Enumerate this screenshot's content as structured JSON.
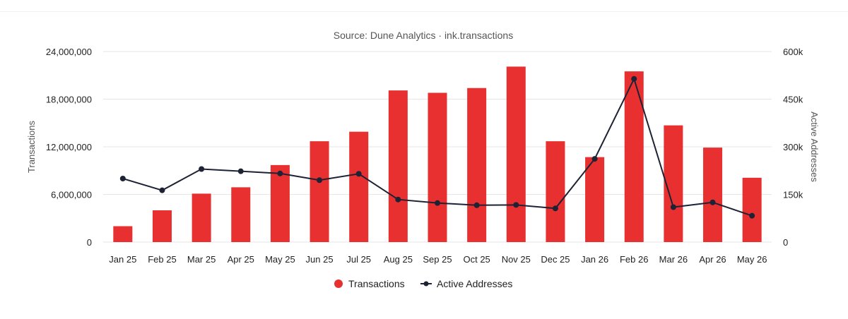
{
  "chart_data": {
    "type": "bar",
    "title": "Source: Dune Analytics · ink.transactions",
    "categories": [
      "Jan 25",
      "Feb 25",
      "Mar 25",
      "Apr 25",
      "May 25",
      "Jun 25",
      "Jul 25",
      "Aug 25",
      "Sep 25",
      "Oct 25",
      "Nov 25",
      "Dec 25",
      "Jan 26",
      "Feb 26",
      "Mar 26",
      "Apr 26",
      "May 26"
    ],
    "series": [
      {
        "name": "Transactions",
        "type": "bar",
        "axis": "left",
        "color": "#e83030",
        "values": [
          2000000,
          4000000,
          6100000,
          6900000,
          9700000,
          12700000,
          13900000,
          19100000,
          18800000,
          19400000,
          22100000,
          12700000,
          10700000,
          21500000,
          14700000,
          11900000,
          8100000
        ]
      },
      {
        "name": "Active Addresses",
        "type": "line",
        "axis": "right",
        "color": "#1e2235",
        "values": [
          200000,
          163000,
          230000,
          223000,
          216000,
          195000,
          215000,
          134000,
          123000,
          116000,
          117000,
          106000,
          262000,
          514000,
          110000,
          125000,
          83000
        ]
      }
    ],
    "ylabel": "Transactions",
    "ylabel_right": "Active Addresses",
    "ylim": [
      0,
      24000000
    ],
    "ylim_right": [
      0,
      600000
    ],
    "yticks": [
      "0",
      "6,000,000",
      "12,000,000",
      "18,000,000",
      "24,000,000"
    ],
    "yticks_right": [
      "0",
      "150k",
      "300k",
      "450k",
      "600k"
    ],
    "grid": true,
    "legend": "bottom-center"
  }
}
